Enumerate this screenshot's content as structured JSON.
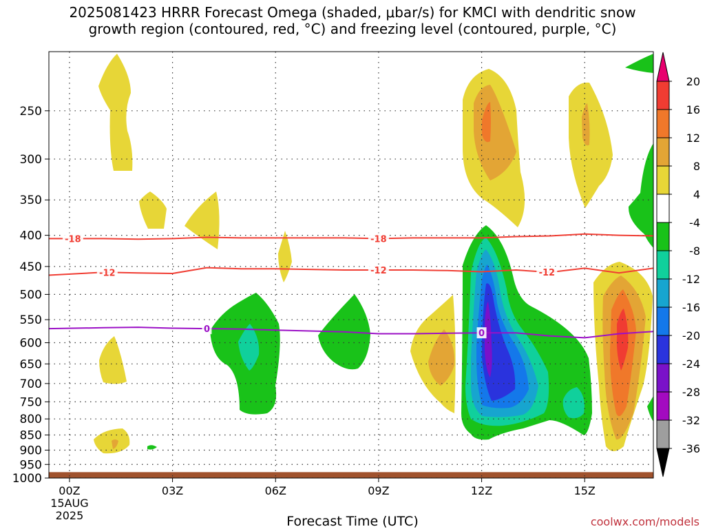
{
  "title": "2025081423 HRRR Forecast Omega (shaded, μbar/s) for KMCI with dendritic snow\ngrowth region (contoured, red, °C) and freezing level (contoured, purple, °C)",
  "xaxis_title": "Forecast Time (UTC)",
  "credit": "coolwx.com/models",
  "chart_data": {
    "type": "time-height cross section",
    "title": "2025081423 HRRR Forecast Omega (shaded, μbar/s) for KMCI with dendritic snow growth region (contoured, red, °C) and freezing level (contoured, purple, °C)",
    "xlabel": "Forecast Time (UTC)",
    "x_ticks": [
      {
        "hour": 0,
        "label": "00Z",
        "sub": [
          "15AUG",
          "2025"
        ]
      },
      {
        "hour": 3,
        "label": "03Z"
      },
      {
        "hour": 6,
        "label": "06Z"
      },
      {
        "hour": 9,
        "label": "09Z"
      },
      {
        "hour": 12,
        "label": "12Z"
      },
      {
        "hour": 15,
        "label": "15Z"
      }
    ],
    "x_range_hours": [
      -0.6,
      17
    ],
    "y_ticks_hpa": [
      250,
      300,
      350,
      400,
      450,
      500,
      550,
      600,
      650,
      700,
      750,
      800,
      850,
      900,
      950,
      1000
    ],
    "y_range_hpa": [
      200,
      1000
    ],
    "y_scale": "log-pressure",
    "grid": true,
    "ground_below_hpa": 978,
    "colorbar_levels": [
      20,
      16,
      12,
      8,
      4,
      -4,
      -8,
      -12,
      -16,
      -20,
      -24,
      -28,
      -32,
      -36
    ],
    "colorbar_colors": [
      "#e8006e",
      "#f03c32",
      "#f0782a",
      "#e3a535",
      "#e7d637",
      "#ffffff",
      "#19c219",
      "#10d09c",
      "#17a5cf",
      "#1478ea",
      "#2a33dd",
      "#7a11c9",
      "#a30ac0",
      "#9e9e9e",
      "#000000"
    ],
    "contours": [
      {
        "name": "-18",
        "color": "#f03c32",
        "x": [
          -0.6,
          1,
          2,
          3,
          4,
          5,
          6,
          7,
          8,
          9,
          10,
          11,
          12,
          13,
          14,
          15,
          16,
          17
        ],
        "y": [
          405,
          405,
          406,
          405,
          403,
          404,
          404,
          404,
          404,
          405,
          404,
          404,
          404,
          402,
          401,
          398,
          400,
          401
        ],
        "labels_at": [
          0.1,
          9
        ]
      },
      {
        "name": "-12",
        "color": "#f03c32",
        "x": [
          -0.6,
          1,
          2,
          3,
          4,
          5,
          6,
          7,
          8,
          9,
          10,
          11,
          12,
          13,
          14,
          15,
          16,
          17
        ],
        "y": [
          465,
          460,
          461,
          462,
          452,
          454,
          454,
          455,
          456,
          456,
          456,
          457,
          459,
          456,
          460,
          453,
          461,
          453
        ],
        "labels_at": [
          1.1,
          9,
          13.9
        ]
      },
      {
        "name": "0",
        "color": "#9b10c6",
        "x": [
          -0.6,
          1,
          2,
          3,
          4,
          5,
          6,
          7,
          8,
          9,
          10,
          11,
          12,
          13,
          14,
          15,
          16,
          17
        ],
        "y": [
          569,
          567,
          566,
          568,
          569,
          570,
          572,
          574,
          576,
          580,
          580,
          579,
          578,
          578,
          585,
          589,
          580,
          575
        ],
        "labels_at": [
          4,
          12
        ]
      }
    ],
    "omega_features": [
      {
        "kind": "ascent",
        "max": 16,
        "time_h": 16,
        "top_hpa": 500,
        "bottom_hpa": 940
      },
      {
        "kind": "ascent",
        "max": 12,
        "time_h": 12,
        "top_hpa": 240,
        "bottom_hpa": 400
      },
      {
        "kind": "ascent",
        "max": 8,
        "time_h": 15,
        "top_hpa": 245,
        "bottom_hpa": 370
      },
      {
        "kind": "ascent",
        "max": 8,
        "time_h": 10.8,
        "top_hpa": 560,
        "bottom_hpa": 830
      },
      {
        "kind": "ascent",
        "max": 4,
        "time_h": 1,
        "top_hpa": 220,
        "bottom_hpa": 340
      },
      {
        "kind": "ascent",
        "max": 4,
        "time_h": 1,
        "top_hpa": 880,
        "bottom_hpa": 955
      },
      {
        "kind": "descent",
        "min": -24,
        "time_h": 12.2,
        "top_hpa": 405,
        "bottom_hpa": 910
      },
      {
        "kind": "descent",
        "min": -12,
        "time_h": 5,
        "top_hpa": 540,
        "bottom_hpa": 820
      },
      {
        "kind": "descent",
        "min": -8,
        "time_h": 8,
        "top_hpa": 560,
        "bottom_hpa": 700
      },
      {
        "kind": "descent",
        "min": -12,
        "time_h": 14.6,
        "top_hpa": 590,
        "bottom_hpa": 900
      },
      {
        "kind": "descent",
        "min": -8,
        "time_h": 17,
        "top_hpa": 210,
        "bottom_hpa": 460
      }
    ]
  }
}
